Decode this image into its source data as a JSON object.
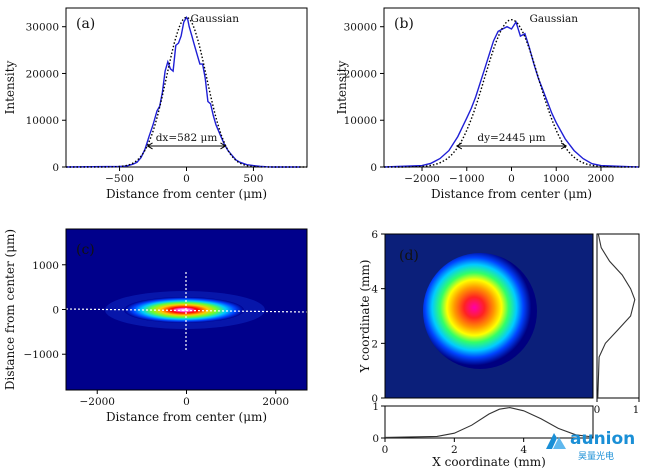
{
  "chart_data": [
    {
      "id": "a",
      "type": "line",
      "panel_label": "(a)",
      "xlabel": "Distance from center (μm)",
      "ylabel": "Intensity",
      "xlim": [
        -900,
        900
      ],
      "ylim": [
        0,
        34000
      ],
      "xticks": [
        -500,
        0,
        500
      ],
      "yticks": [
        0,
        10000,
        20000,
        30000
      ],
      "annotations": {
        "fit_label": "Gaussian",
        "width_label": "dx=582 μm"
      },
      "width_arrow": [
        -291,
        291
      ],
      "width_arrow_y": 4500,
      "series": [
        {
          "style": "solid",
          "color": "#1f1fd6",
          "x": [
            -900,
            -500,
            -450,
            -400,
            -370,
            -340,
            -310,
            -280,
            -250,
            -220,
            -200,
            -180,
            -160,
            -140,
            -120,
            -100,
            -80,
            -60,
            -40,
            -20,
            0,
            10,
            20,
            40,
            60,
            80,
            100,
            120,
            140,
            160,
            180,
            200,
            220,
            250,
            280,
            310,
            340,
            370,
            400,
            450,
            500,
            550,
            600,
            650,
            700,
            750,
            800,
            850
          ],
          "y": [
            0,
            100,
            200,
            600,
            1000,
            2000,
            3800,
            6500,
            9000,
            12000,
            13000,
            16000,
            20500,
            22500,
            21000,
            20500,
            26000,
            26500,
            28000,
            31000,
            32000,
            31500,
            30000,
            28000,
            26000,
            24000,
            22000,
            22000,
            19000,
            14000,
            13500,
            11000,
            9000,
            7000,
            5000,
            3500,
            2500,
            1500,
            1000,
            500,
            300,
            150,
            50,
            0,
            0,
            0,
            0,
            0
          ]
        },
        {
          "style": "dotted",
          "color": "#000000",
          "mu": 0,
          "sigma": 148,
          "amp": 32000
        }
      ]
    },
    {
      "id": "b",
      "type": "line",
      "panel_label": "(b)",
      "xlabel": "Distance from center (μm)",
      "ylabel": "Intensity",
      "xlim": [
        -2850,
        2850
      ],
      "ylim": [
        0,
        34000
      ],
      "xticks": [
        -2000,
        -1000,
        0,
        1000,
        2000
      ],
      "yticks": [
        0,
        10000,
        20000,
        30000
      ],
      "annotations": {
        "fit_label": "Gaussian",
        "width_label": "dy=2445 μm"
      },
      "width_arrow": [
        -1222,
        1222
      ],
      "width_arrow_y": 4500,
      "series": [
        {
          "style": "solid",
          "color": "#1f1fd6",
          "x": [
            -2850,
            -2000,
            -1800,
            -1600,
            -1400,
            -1200,
            -1000,
            -900,
            -800,
            -700,
            -600,
            -500,
            -400,
            -300,
            -200,
            -100,
            0,
            100,
            200,
            300,
            400,
            500,
            600,
            700,
            800,
            900,
            1000,
            1200,
            1400,
            1600,
            1800,
            2000,
            2850
          ],
          "y": [
            0,
            300,
            800,
            1800,
            3500,
            6500,
            10500,
            12500,
            15000,
            18000,
            21000,
            24000,
            27000,
            29000,
            29500,
            30000,
            29500,
            31000,
            28000,
            28500,
            25500,
            22000,
            19000,
            16500,
            14000,
            11500,
            9500,
            6000,
            3500,
            1800,
            700,
            300,
            0
          ]
        },
        {
          "style": "dotted",
          "color": "#000000",
          "mu": 0,
          "sigma": 600,
          "amp": 31500
        }
      ]
    },
    {
      "id": "c",
      "type": "heatmap",
      "panel_label": "(c)",
      "xlabel": "Distance from center (μm)",
      "ylabel": "Distance from center (μm)",
      "xlim": [
        -2700,
        2700
      ],
      "ylim": [
        -1800,
        1800
      ],
      "xticks": [
        -2000,
        0,
        2000
      ],
      "yticks": [
        -1000,
        0,
        1000
      ],
      "colormap": "jet"
    },
    {
      "id": "d",
      "type": "heatmap",
      "panel_label": "(d)",
      "xlabel": "X coordinate (mm)",
      "ylabel": "Y coordinate (mm)",
      "xlim": [
        0,
        6
      ],
      "ylim": [
        0,
        6
      ],
      "xticks": [
        0,
        2,
        4
      ],
      "yticks": [
        0,
        2,
        4,
        6
      ],
      "colormap": "jet",
      "x_profile": {
        "yticks": [
          0,
          1
        ],
        "x": [
          0,
          1.5,
          2,
          2.5,
          3,
          3.3,
          3.6,
          4,
          4.5,
          5,
          5.5,
          6
        ],
        "y": [
          0.02,
          0.05,
          0.15,
          0.4,
          0.75,
          0.9,
          0.95,
          0.85,
          0.6,
          0.3,
          0.1,
          0.03
        ]
      },
      "y_profile": {
        "xticks": [
          0,
          1
        ],
        "y": [
          0,
          1.5,
          2,
          2.5,
          3,
          3.3,
          3.6,
          4,
          4.5,
          5,
          5.5,
          6
        ],
        "x": [
          0.02,
          0.05,
          0.2,
          0.5,
          0.8,
          0.85,
          0.9,
          0.8,
          0.6,
          0.3,
          0.1,
          0.03
        ]
      }
    }
  ],
  "logo": {
    "name": "aunion",
    "subtitle": "昊量光电"
  }
}
